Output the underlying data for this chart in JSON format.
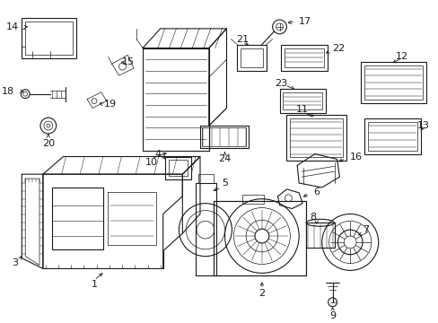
{
  "background_color": "#ffffff",
  "line_color": "#1a1a1a",
  "figsize": [
    4.89,
    3.6
  ],
  "dpi": 100,
  "font_size": 8.0
}
